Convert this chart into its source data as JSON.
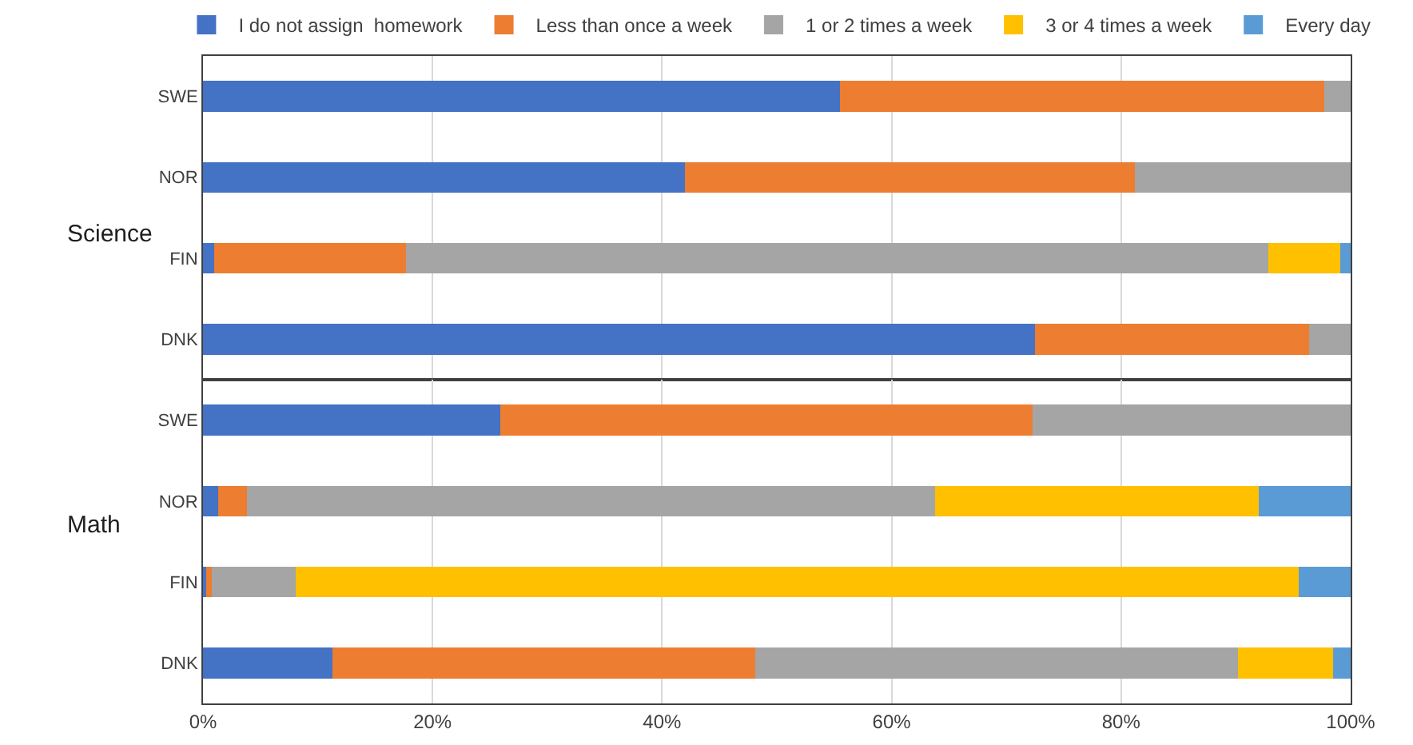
{
  "chart_data": [
    {
      "type": "bar",
      "orientation": "horizontal",
      "stacked": true,
      "ylabel": "Science",
      "categories": [
        "SWE",
        "NOR",
        "FIN",
        "DNK"
      ],
      "xlim": [
        0,
        100
      ],
      "xticks": [
        0,
        20,
        40,
        60,
        80,
        100
      ],
      "tick_labels": "y",
      "grid": "x",
      "legend": "top",
      "series": [
        {
          "name": "I do not assign  homework",
          "color": "#4472c4",
          "values": [
            55.5,
            42.0,
            1.0,
            72.5
          ]
        },
        {
          "name": "Less than once a week",
          "color": "#ed7d31",
          "values": [
            42.2,
            39.2,
            16.7,
            23.9
          ]
        },
        {
          "name": "1 or 2 times a week",
          "color": "#a5a5a5",
          "values": [
            2.3,
            18.8,
            75.1,
            3.6
          ]
        },
        {
          "name": "3 or 4 times a week",
          "color": "#ffc000",
          "values": [
            0,
            0,
            6.3,
            0
          ]
        },
        {
          "name": "Every day",
          "color": "#5b9bd5",
          "values": [
            0,
            0,
            0.9,
            0
          ]
        }
      ]
    },
    {
      "type": "bar",
      "orientation": "horizontal",
      "stacked": true,
      "ylabel": "Math",
      "categories": [
        "SWE",
        "NOR",
        "FIN",
        "DNK"
      ],
      "xlim": [
        0,
        100
      ],
      "xticks": [
        {
          "value": 0,
          "label": "0%"
        },
        {
          "value": 20,
          "label": "20%"
        },
        {
          "value": 40,
          "label": "40%"
        },
        {
          "value": 60,
          "label": "60%"
        },
        {
          "value": 80,
          "label": "80%"
        },
        {
          "value": 100,
          "label": "100%"
        }
      ],
      "grid": "x",
      "series": [
        {
          "color": "#4472c4",
          "values": [
            25.9,
            1.3,
            0.3,
            11.3
          ]
        },
        {
          "color": "#ed7d31",
          "values": [
            46.4,
            2.5,
            0.5,
            36.8
          ]
        },
        {
          "color": "#a5a5a5",
          "values": [
            27.7,
            60.0,
            7.3,
            42.1
          ]
        },
        {
          "color": "#ffc000",
          "values": [
            0,
            28.2,
            87.4,
            8.3
          ]
        },
        {
          "color": "#5b9bd5",
          "values": [
            0,
            8.0,
            4.5,
            1.5
          ]
        }
      ]
    }
  ]
}
